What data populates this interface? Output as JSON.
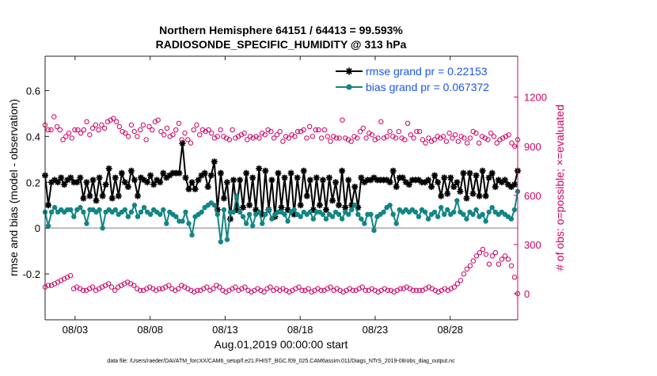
{
  "chart_data": {
    "type": "line",
    "title_line1": "Northern Hemisphere 64151 / 64413 = 99.593%",
    "title_line2": "RADIOSONDE_SPECIFIC_HUMIDITY @ 313 hPa",
    "xlabel": "Aug.01,2019 00:00:00 start",
    "ylabel_left": "rmse and bias (model - observation)",
    "ylabel_right": "# of obs: o=possible; ×=evaluated",
    "xlim": [
      0,
      31.5
    ],
    "ylim_left": [
      -0.4,
      0.75
    ],
    "ylim_right": [
      -160,
      1450
    ],
    "x_ticks": [
      {
        "v": 2,
        "label": "08/03"
      },
      {
        "v": 7,
        "label": "08/08"
      },
      {
        "v": 12,
        "label": "08/13"
      },
      {
        "v": 17,
        "label": "08/18"
      },
      {
        "v": 22,
        "label": "08/23"
      },
      {
        "v": 27,
        "label": "08/28"
      }
    ],
    "y_ticks_left": [
      {
        "v": 0.6,
        "label": "0.6"
      },
      {
        "v": 0.4,
        "label": "0.4"
      },
      {
        "v": 0.2,
        "label": "0.2"
      },
      {
        "v": 0,
        "label": "0"
      },
      {
        "v": -0.2,
        "label": "-0.2"
      }
    ],
    "y_ticks_right": [
      {
        "v": 1200,
        "label": "1200"
      },
      {
        "v": 900,
        "label": "900"
      },
      {
        "v": 600,
        "label": "600"
      },
      {
        "v": 300,
        "label": "300"
      },
      {
        "v": 0,
        "label": "0"
      }
    ],
    "series": [
      {
        "name": "rmse",
        "legend": "rmse grand pr = 0.22153",
        "color": "#000000",
        "marker": "star",
        "axis": "left",
        "values": [
          0.23,
          0.1,
          0.2,
          0.21,
          0.2,
          0.22,
          0.19,
          0.21,
          0.22,
          0.2,
          0.2,
          0.22,
          0.13,
          0.2,
          0.14,
          0.21,
          0.12,
          0.22,
          0.14,
          0.19,
          0.26,
          0.13,
          0.22,
          0.14,
          0.24,
          0.2,
          0.18,
          0.25,
          0.21,
          0.14,
          0.22,
          0.21,
          0.2,
          0.23,
          0.19,
          0.21,
          0.2,
          0.24,
          0.22,
          0.23,
          0.24,
          0.24,
          0.24,
          0.37,
          0.22,
          0.17,
          0.2,
          0.17,
          0.21,
          0.23,
          0.24,
          0.18,
          0.23,
          0.29,
          0.08,
          0.24,
          0.13,
          0.2,
          0.04,
          0.21,
          0.08,
          0.21,
          0.09,
          0.24,
          0.1,
          0.22,
          0.08,
          0.26,
          0.06,
          0.25,
          0.08,
          0.21,
          0.05,
          0.24,
          0.09,
          0.22,
          0.08,
          0.24,
          0.06,
          0.22,
          0.1,
          0.25,
          0.14,
          0.21,
          0.08,
          0.22,
          0.1,
          0.21,
          0.08,
          0.22,
          0.12,
          0.2,
          0.1,
          0.25,
          0.09,
          0.21,
          0.1,
          0.18,
          0.09,
          0.22,
          0.2,
          0.21,
          0.21,
          0.22,
          0.21,
          0.21,
          0.21,
          0.21,
          0.2,
          0.25,
          0.18,
          0.22,
          0.22,
          0.2,
          0.19,
          0.21,
          0.21,
          0.21,
          0.2,
          0.2,
          0.21,
          0.18,
          0.23,
          0.2,
          0.14,
          0.22,
          0.15,
          0.22,
          0.18,
          0.2,
          0.16,
          0.24,
          0.13,
          0.24,
          0.15,
          0.23,
          0.14,
          0.25,
          0.14,
          0.22,
          0.24,
          0.18,
          0.21,
          0.2,
          0.21,
          0.19,
          0.18,
          0.19,
          0.25
        ]
      },
      {
        "name": "bias",
        "legend": "bias grand pr = 0.067372",
        "color": "#138585",
        "marker": "dot",
        "axis": "left",
        "values": [
          0.07,
          0.01,
          0.07,
          0.09,
          0.07,
          0.08,
          0.07,
          0.08,
          0.08,
          0.05,
          0.08,
          0.09,
          0.07,
          0.02,
          0.08,
          0.08,
          0.07,
          0.08,
          0.0,
          0.07,
          0.08,
          0.07,
          0.08,
          0.06,
          0.07,
          0.08,
          0.05,
          0.07,
          0.1,
          0.05,
          0.07,
          0.09,
          0.07,
          0.06,
          0.08,
          0.07,
          0.06,
          0.08,
          0.02,
          0.07,
          0.06,
          0.05,
          0.03,
          0.03,
          0.07,
          0.02,
          -0.03,
          0.05,
          0.06,
          0.07,
          0.09,
          0.1,
          0.11,
          0.1,
          0.06,
          -0.06,
          0.08,
          -0.05,
          0.07,
          0.07,
          0.14,
          0.07,
          0.05,
          0.02,
          0.06,
          0.01,
          0.06,
          0.07,
          0.02,
          0.06,
          0.08,
          0.04,
          0.06,
          0.07,
          0.07,
          0.06,
          0.03,
          0.07,
          0.08,
          0.06,
          0.05,
          0.07,
          0.06,
          0.07,
          0.04,
          0.07,
          0.07,
          0.06,
          0.04,
          0.06,
          0.05,
          0.07,
          0.06,
          0.04,
          0.07,
          0.06,
          0.08,
          0.1,
          0.06,
          0.04,
          0.02,
          0.06,
          0.06,
          -0.01,
          0.05,
          0.06,
          0.07,
          0.09,
          0.1,
          0.06,
          0.02,
          0.08,
          0.07,
          0.08,
          0.07,
          0.08,
          0.07,
          0.05,
          0.08,
          0.07,
          0.04,
          0.06,
          0.07,
          0.05,
          0.09,
          0.06,
          0.08,
          0.06,
          0.07,
          0.12,
          0.07,
          0.06,
          0.04,
          0.07,
          0.06,
          0.08,
          0.05,
          0.06,
          0.03,
          0.07,
          0.09,
          0.07,
          0.06,
          0.07,
          0.06,
          0.05,
          0.04,
          0.08,
          0.16
        ]
      },
      {
        "name": "possible",
        "color": "#cc0066",
        "marker": "circle",
        "axis": "right",
        "values": [
          1030,
          1000,
          1000,
          1080,
          1020,
          1000,
          940,
          960,
          980,
          950,
          1000,
          1000,
          980,
          1000,
          1050,
          970,
          1010,
          1030,
          1000,
          1030,
          1010,
          1050,
          1060,
          1070,
          1050,
          1020,
          990,
          980,
          960,
          1030,
          990,
          960,
          1000,
          1030,
          940,
          1020,
          1000,
          1050,
          1060,
          990,
          970,
          1010,
          960,
          970,
          1000,
          1040,
          940,
          980,
          940,
          920,
          1000,
          1030,
          970,
          1000,
          990,
          1000,
          980,
          950,
          960,
          1000,
          960,
          950,
          940,
          1000,
          950,
          960,
          970,
          980,
          940,
          960,
          950,
          960,
          950,
          980,
          970,
          1000,
          990,
          950,
          970,
          990,
          930,
          960,
          950,
          970,
          960,
          990,
          990,
          1000,
          950,
          1020,
          960,
          1000,
          1000,
          950,
          1000,
          960,
          930,
          960,
          950,
          950,
          1060,
          950,
          940,
          930,
          960,
          950,
          990,
          1010,
          950,
          980,
          970,
          940,
          950,
          1050,
          950,
          960,
          990,
          960,
          950,
          990,
          950,
          940,
          1040,
          970,
          950,
          990,
          990,
          940,
          920,
          950,
          930,
          940,
          960,
          950,
          960,
          930,
          980,
          950,
          970,
          930,
          960,
          950,
          920,
          950,
          990,
          980,
          920,
          960,
          950,
          940,
          980,
          960,
          920,
          940,
          950,
          960,
          970,
          920,
          900,
          940
        ]
      },
      {
        "name": "evaluated",
        "color": "#cc0066",
        "marker": "circle",
        "axis": "right",
        "values": [
          40,
          50,
          50,
          60,
          70,
          80,
          90,
          100,
          110,
          30,
          40,
          30,
          20,
          20,
          30,
          40,
          20,
          30,
          40,
          50,
          60,
          40,
          20,
          40,
          50,
          60,
          70,
          60,
          50,
          30,
          20,
          20,
          30,
          40,
          30,
          20,
          30,
          30,
          40,
          50,
          30,
          20,
          30,
          50,
          40,
          30,
          20,
          10,
          20,
          20,
          30,
          40,
          20,
          30,
          50,
          40,
          20,
          10,
          20,
          30,
          40,
          20,
          30,
          40,
          20,
          10,
          20,
          30,
          20,
          10,
          30,
          40,
          20,
          30,
          20,
          30,
          20,
          10,
          20,
          30,
          40,
          20,
          20,
          30,
          10,
          20,
          30,
          20,
          20,
          30,
          40,
          20,
          30,
          20,
          10,
          20,
          30,
          20,
          20,
          30,
          40,
          20,
          20,
          30,
          20,
          10,
          20,
          30,
          20,
          20,
          10,
          20,
          30,
          30,
          40,
          30,
          20,
          20,
          20,
          20,
          30,
          40,
          30,
          20,
          10,
          20,
          30,
          20,
          30,
          40,
          60,
          80,
          120,
          150,
          170,
          200,
          230,
          250,
          270,
          240,
          180,
          230,
          250,
          180,
          210,
          230,
          210,
          170,
          100,
          0
        ]
      }
    ]
  },
  "footer": {
    "text": "data file: /Users/raeder/DAI/ATM_forcXX/CAM6_setup/f.e21.FHIST_BGC.f09_025.CAM6assim.011/Diags_NTrS_2019-08/obs_diag_output.nc"
  }
}
